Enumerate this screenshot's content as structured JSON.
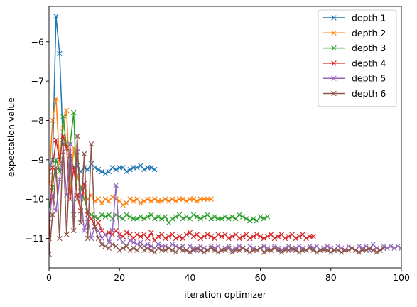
{
  "chart_data": {
    "type": "line",
    "xlabel": "iteration optimizer",
    "ylabel": "expectation value",
    "xlim": [
      0,
      100
    ],
    "ylim": [
      -11.75,
      -5.1
    ],
    "x_ticks": [
      0,
      20,
      40,
      60,
      80,
      100
    ],
    "y_ticks": [
      -6,
      -7,
      -8,
      -9,
      -10,
      -11
    ],
    "y_tick_labels": [
      "−6",
      "−7",
      "−8",
      "−9",
      "−10",
      "−11"
    ],
    "legend_position": "top-right",
    "marker": "x",
    "series": [
      {
        "name": "depth 1",
        "color": "#1f77b4",
        "values": [
          -9.3,
          -9.0,
          -5.35,
          -6.3,
          -8.6,
          -8.7,
          -8.9,
          -9.2,
          -9.15,
          -9.3,
          -9.2,
          -9.25,
          -9.1,
          -9.2,
          -9.25,
          -9.3,
          -9.35,
          -9.3,
          -9.2,
          -9.25,
          -9.2,
          -9.2,
          -9.3,
          -9.25,
          -9.2,
          -9.2,
          -9.15,
          -9.25,
          -9.2,
          -9.2,
          -9.25
        ]
      },
      {
        "name": "depth 2",
        "color": "#ff7f0e",
        "values": [
          -9.6,
          -8.0,
          -7.45,
          -9.1,
          -8.2,
          -7.75,
          -9.8,
          -8.7,
          -9.4,
          -9.7,
          -9.85,
          -10.0,
          -9.9,
          -10.05,
          -10.0,
          -10.1,
          -10.0,
          -10.05,
          -9.95,
          -10.0,
          -10.05,
          -10.15,
          -10.1,
          -10.0,
          -10.05,
          -10.0,
          -10.1,
          -10.05,
          -10.0,
          -10.05,
          -10.0,
          -10.05,
          -10.05,
          -10.0,
          -10.05,
          -10.0,
          -10.05,
          -10.0,
          -10.0,
          -10.05,
          -10.0,
          -10.0,
          -10.05,
          -10.0,
          -10.0,
          -10.0,
          -10.0
        ]
      },
      {
        "name": "depth 3",
        "color": "#2ca02c",
        "values": [
          -10.2,
          -9.7,
          -9.0,
          -9.3,
          -7.9,
          -8.7,
          -8.6,
          -7.8,
          -10.0,
          -9.7,
          -10.0,
          -10.3,
          -10.4,
          -10.45,
          -10.5,
          -10.4,
          -10.45,
          -10.4,
          -10.5,
          -10.4,
          -10.45,
          -10.5,
          -10.4,
          -10.45,
          -10.5,
          -10.5,
          -10.45,
          -10.5,
          -10.45,
          -10.4,
          -10.5,
          -10.45,
          -10.5,
          -10.45,
          -10.6,
          -10.5,
          -10.45,
          -10.4,
          -10.5,
          -10.45,
          -10.5,
          -10.4,
          -10.45,
          -10.5,
          -10.45,
          -10.4,
          -10.5,
          -10.45,
          -10.5,
          -10.5,
          -10.45,
          -10.5,
          -10.45,
          -10.5,
          -10.4,
          -10.45,
          -10.5,
          -10.55,
          -10.5,
          -10.55,
          -10.45,
          -10.5,
          -10.45
        ]
      },
      {
        "name": "depth 4",
        "color": "#d62728",
        "values": [
          -11.0,
          -9.2,
          -8.5,
          -9.0,
          -8.4,
          -8.7,
          -10.0,
          -9.2,
          -9.9,
          -10.3,
          -9.6,
          -10.4,
          -10.5,
          -10.7,
          -10.6,
          -10.8,
          -10.9,
          -10.85,
          -10.9,
          -10.8,
          -10.9,
          -10.95,
          -10.85,
          -10.9,
          -11.0,
          -10.9,
          -10.95,
          -10.9,
          -11.0,
          -10.85,
          -11.05,
          -10.95,
          -10.9,
          -11.0,
          -10.95,
          -10.9,
          -11.0,
          -10.95,
          -11.0,
          -10.9,
          -10.85,
          -10.95,
          -10.9,
          -11.0,
          -10.95,
          -10.9,
          -10.95,
          -11.0,
          -10.9,
          -10.95,
          -10.9,
          -11.0,
          -10.95,
          -10.9,
          -11.0,
          -10.95,
          -10.9,
          -11.0,
          -10.95,
          -10.9,
          -10.95,
          -11.0,
          -10.95,
          -10.9,
          -11.0,
          -10.95,
          -10.9,
          -11.0,
          -10.95,
          -10.9,
          -11.0,
          -10.95,
          -10.9,
          -11.0,
          -10.95,
          -10.95
        ]
      },
      {
        "name": "depth 5",
        "color": "#9467bd",
        "values": [
          -10.5,
          -9.9,
          -10.3,
          -9.5,
          -8.8,
          -9.9,
          -8.6,
          -10.4,
          -8.8,
          -9.9,
          -10.8,
          -10.5,
          -11.0,
          -10.7,
          -10.8,
          -11.0,
          -10.9,
          -11.1,
          -10.8,
          -9.65,
          -11.0,
          -11.1,
          -11.2,
          -11.05,
          -11.1,
          -11.15,
          -11.1,
          -11.2,
          -11.15,
          -11.2,
          -11.25,
          -11.15,
          -11.2,
          -11.2,
          -11.25,
          -11.15,
          -11.2,
          -11.25,
          -11.2,
          -11.3,
          -11.2,
          -11.25,
          -11.3,
          -11.2,
          -11.25,
          -11.3,
          -11.2,
          -11.25,
          -11.2,
          -11.3,
          -11.25,
          -11.2,
          -11.3,
          -11.25,
          -11.2,
          -11.25,
          -11.3,
          -11.2,
          -11.25,
          -11.3,
          -11.25,
          -11.2,
          -11.25,
          -11.3,
          -11.2,
          -11.25,
          -11.3,
          -11.25,
          -11.2,
          -11.3,
          -11.25,
          -11.2,
          -11.25,
          -11.3,
          -11.2,
          -11.25,
          -11.2,
          -11.3,
          -11.25,
          -11.2,
          -11.25,
          -11.3,
          -11.2,
          -11.25,
          -11.3,
          -11.2,
          -11.25,
          -11.3,
          -11.2,
          -11.25,
          -11.2,
          -11.3,
          -11.15,
          -11.25,
          -11.3,
          -11.2,
          -11.25,
          -11.2,
          -11.25,
          -11.2,
          -11.25
        ]
      },
      {
        "name": "depth 6",
        "color": "#8c564b",
        "values": [
          -11.4,
          -10.4,
          -9.2,
          -11.0,
          -8.6,
          -10.9,
          -8.9,
          -10.8,
          -8.4,
          -10.6,
          -8.85,
          -11.0,
          -8.6,
          -10.7,
          -11.0,
          -11.15,
          -11.2,
          -11.25,
          -11.15,
          -11.2,
          -11.3,
          -11.25,
          -11.2,
          -11.3,
          -11.25,
          -11.3,
          -11.2,
          -11.3,
          -11.25,
          -11.3,
          -11.35,
          -11.25,
          -11.3,
          -11.3,
          -11.25,
          -11.3,
          -11.35,
          -11.25,
          -11.3,
          -11.3,
          -11.35,
          -11.3,
          -11.25,
          -11.3,
          -11.35,
          -11.3,
          -11.25,
          -11.3,
          -11.35,
          -11.3,
          -11.3,
          -11.25,
          -11.35,
          -11.3,
          -11.3,
          -11.25,
          -11.3,
          -11.35,
          -11.3,
          -11.3,
          -11.25,
          -11.35,
          -11.3,
          -11.3,
          -11.25,
          -11.3,
          -11.35,
          -11.3,
          -11.3,
          -11.25,
          -11.3,
          -11.35,
          -11.3,
          -11.3,
          -11.25,
          -11.3,
          -11.35,
          -11.3,
          -11.3,
          -11.3,
          -11.35,
          -11.3,
          -11.3,
          -11.35,
          -11.3,
          -11.3,
          -11.25,
          -11.3,
          -11.35,
          -11.3,
          -11.3,
          -11.25,
          -11.3,
          -11.35,
          -11.3,
          -11.25
        ]
      }
    ]
  }
}
